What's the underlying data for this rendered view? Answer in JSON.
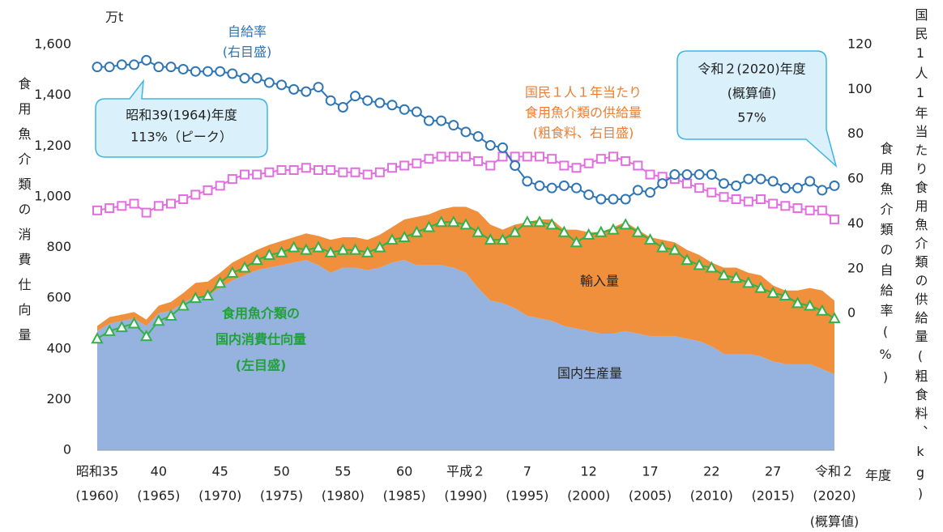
{
  "chart_data": {
    "type": "combo",
    "y_unit": "万t",
    "y_label": "食用魚介類の消費仕向量",
    "y2_label_outer": "国民1人1年当たり食用魚介類の供給量(粗食料、kg)",
    "y2_label_inner": "食用魚介類の自給率(%)",
    "x_label": "年度",
    "x": [
      1960,
      1961,
      1962,
      1963,
      1964,
      1965,
      1966,
      1967,
      1968,
      1969,
      1970,
      1971,
      1972,
      1973,
      1974,
      1975,
      1976,
      1977,
      1978,
      1979,
      1980,
      1981,
      1982,
      1983,
      1984,
      1985,
      1986,
      1987,
      1988,
      1989,
      1990,
      1991,
      1992,
      1993,
      1994,
      1995,
      1996,
      1997,
      1998,
      1999,
      2000,
      2001,
      2002,
      2003,
      2004,
      2005,
      2006,
      2007,
      2008,
      2009,
      2010,
      2011,
      2012,
      2013,
      2014,
      2015,
      2016,
      2017,
      2018,
      2019,
      2020
    ],
    "xlim": [
      1960,
      2020
    ],
    "xticks": [
      {
        "value": 1960,
        "label": "昭和35"
      },
      {
        "value": 1965,
        "label": "40"
      },
      {
        "value": 1970,
        "label": "45"
      },
      {
        "value": 1975,
        "label": "50"
      },
      {
        "value": 1980,
        "label": "55"
      },
      {
        "value": 1985,
        "label": "60"
      },
      {
        "value": 1990,
        "label": "平成２"
      },
      {
        "value": 1995,
        "label": "7"
      },
      {
        "value": 2000,
        "label": "12"
      },
      {
        "value": 2005,
        "label": "17"
      },
      {
        "value": 2010,
        "label": "22"
      },
      {
        "value": 2015,
        "label": "27"
      },
      {
        "value": 2020,
        "label": "令和２"
      }
    ],
    "xtick_sublabels": [
      "(1960)",
      "(1965)",
      "(1970)",
      "(1975)",
      "(1980)",
      "(1985)",
      "(1990)",
      "(1995)",
      "(2000)",
      "(2005)",
      "(2010)",
      "(2015)",
      "(2020)"
    ],
    "x_note": "(概算値)",
    "ylim": [
      0,
      1600
    ],
    "yticks": [
      0,
      200,
      400,
      600,
      800,
      {
        "value": 1000,
        "label": "1,000"
      },
      {
        "value": 1200,
        "label": "1,200"
      },
      {
        "value": 1400,
        "label": "1,400"
      },
      {
        "value": 1600,
        "label": "1,600"
      }
    ],
    "y2lim": [
      -61,
      120
    ],
    "y2ticks": [
      0,
      20,
      40,
      60,
      80,
      100,
      120
    ],
    "series": [
      {
        "name": "国内生産量",
        "kind": "area",
        "color": "#95b3de",
        "values": [
          470,
          500,
          510,
          520,
          490,
          540,
          550,
          580,
          610,
          610,
          640,
          670,
          690,
          710,
          720,
          730,
          740,
          750,
          730,
          700,
          720,
          720,
          710,
          720,
          740,
          750,
          730,
          730,
          730,
          720,
          700,
          640,
          590,
          580,
          560,
          530,
          520,
          510,
          490,
          480,
          470,
          460,
          460,
          470,
          460,
          450,
          450,
          450,
          440,
          430,
          410,
          380,
          380,
          380,
          370,
          350,
          340,
          340,
          340,
          320,
          300
        ]
      },
      {
        "name": "輸入量",
        "kind": "area",
        "color": "#f0903c",
        "values": [
          20,
          25,
          25,
          25,
          25,
          30,
          35,
          40,
          50,
          55,
          60,
          70,
          75,
          80,
          90,
          95,
          100,
          105,
          115,
          130,
          120,
          120,
          120,
          130,
          140,
          160,
          190,
          200,
          220,
          240,
          260,
          300,
          300,
          290,
          330,
          370,
          390,
          400,
          380,
          390,
          390,
          400,
          420,
          430,
          410,
          390,
          380,
          370,
          350,
          340,
          330,
          340,
          340,
          320,
          320,
          300,
          290,
          290,
          300,
          310,
          290
        ]
      },
      {
        "kind": "line",
        "marker": "square",
        "axis": "y2",
        "color": "#e26ee0",
        "values": [
          46,
          47,
          48,
          49,
          45,
          48,
          49,
          51,
          53,
          55,
          57,
          60,
          62,
          62,
          63,
          64,
          64,
          65,
          64,
          64,
          63,
          63,
          62,
          63,
          65,
          66,
          67,
          69,
          70,
          70,
          70,
          68,
          66,
          70,
          70,
          70,
          70,
          69,
          66,
          65,
          67,
          69,
          70,
          68,
          66,
          62,
          61,
          60,
          58,
          56,
          54,
          52,
          51,
          50,
          51,
          49,
          48,
          47,
          46,
          46,
          42
        ]
      },
      {
        "kind": "line",
        "marker": "triangle",
        "color": "#35b14a",
        "values": [
          440,
          470,
          485,
          500,
          450,
          510,
          530,
          570,
          600,
          610,
          660,
          700,
          720,
          750,
          770,
          780,
          800,
          790,
          800,
          780,
          790,
          790,
          780,
          800,
          830,
          840,
          860,
          880,
          900,
          900,
          890,
          860,
          830,
          830,
          860,
          900,
          900,
          890,
          860,
          820,
          850,
          860,
          870,
          890,
          860,
          830,
          800,
          790,
          750,
          730,
          720,
          690,
          680,
          660,
          640,
          620,
          610,
          580,
          570,
          550,
          520
        ]
      },
      {
        "kind": "line",
        "marker": "circle",
        "axis": "y2",
        "color": "#2e75b6",
        "values": [
          110,
          110,
          111,
          111,
          113,
          110,
          110,
          109,
          108,
          108,
          108,
          107,
          105,
          105,
          103,
          102,
          100,
          99,
          101,
          95,
          92,
          97,
          95,
          94,
          93,
          91,
          90,
          86,
          86,
          84,
          81,
          79,
          75,
          74,
          66,
          59,
          57,
          56,
          57,
          56,
          53,
          51,
          51,
          51,
          55,
          54,
          58,
          62,
          62,
          62,
          62,
          58,
          57,
          60,
          60,
          59,
          56,
          56,
          59,
          55,
          57
        ]
      }
    ],
    "annotations": [
      {
        "lines": [
          "自給率",
          "(右目盛)"
        ]
      },
      {
        "lines": [
          "国民１人１年当たり",
          "食用魚介類の供給量",
          "(粗食料、右目盛)"
        ]
      },
      {
        "lines": [
          "昭和39(1964)年度",
          "113%（ピーク）"
        ]
      },
      {
        "lines": [
          "令和２(2020)年度",
          "(概算値)",
          "57%"
        ]
      },
      {
        "lines": [
          "輸入量"
        ]
      },
      {
        "lines": [
          "国内生産量"
        ]
      },
      {
        "lines": [
          "食用魚介類の",
          "国内消費仕向量",
          "(左目盛)"
        ]
      }
    ]
  }
}
